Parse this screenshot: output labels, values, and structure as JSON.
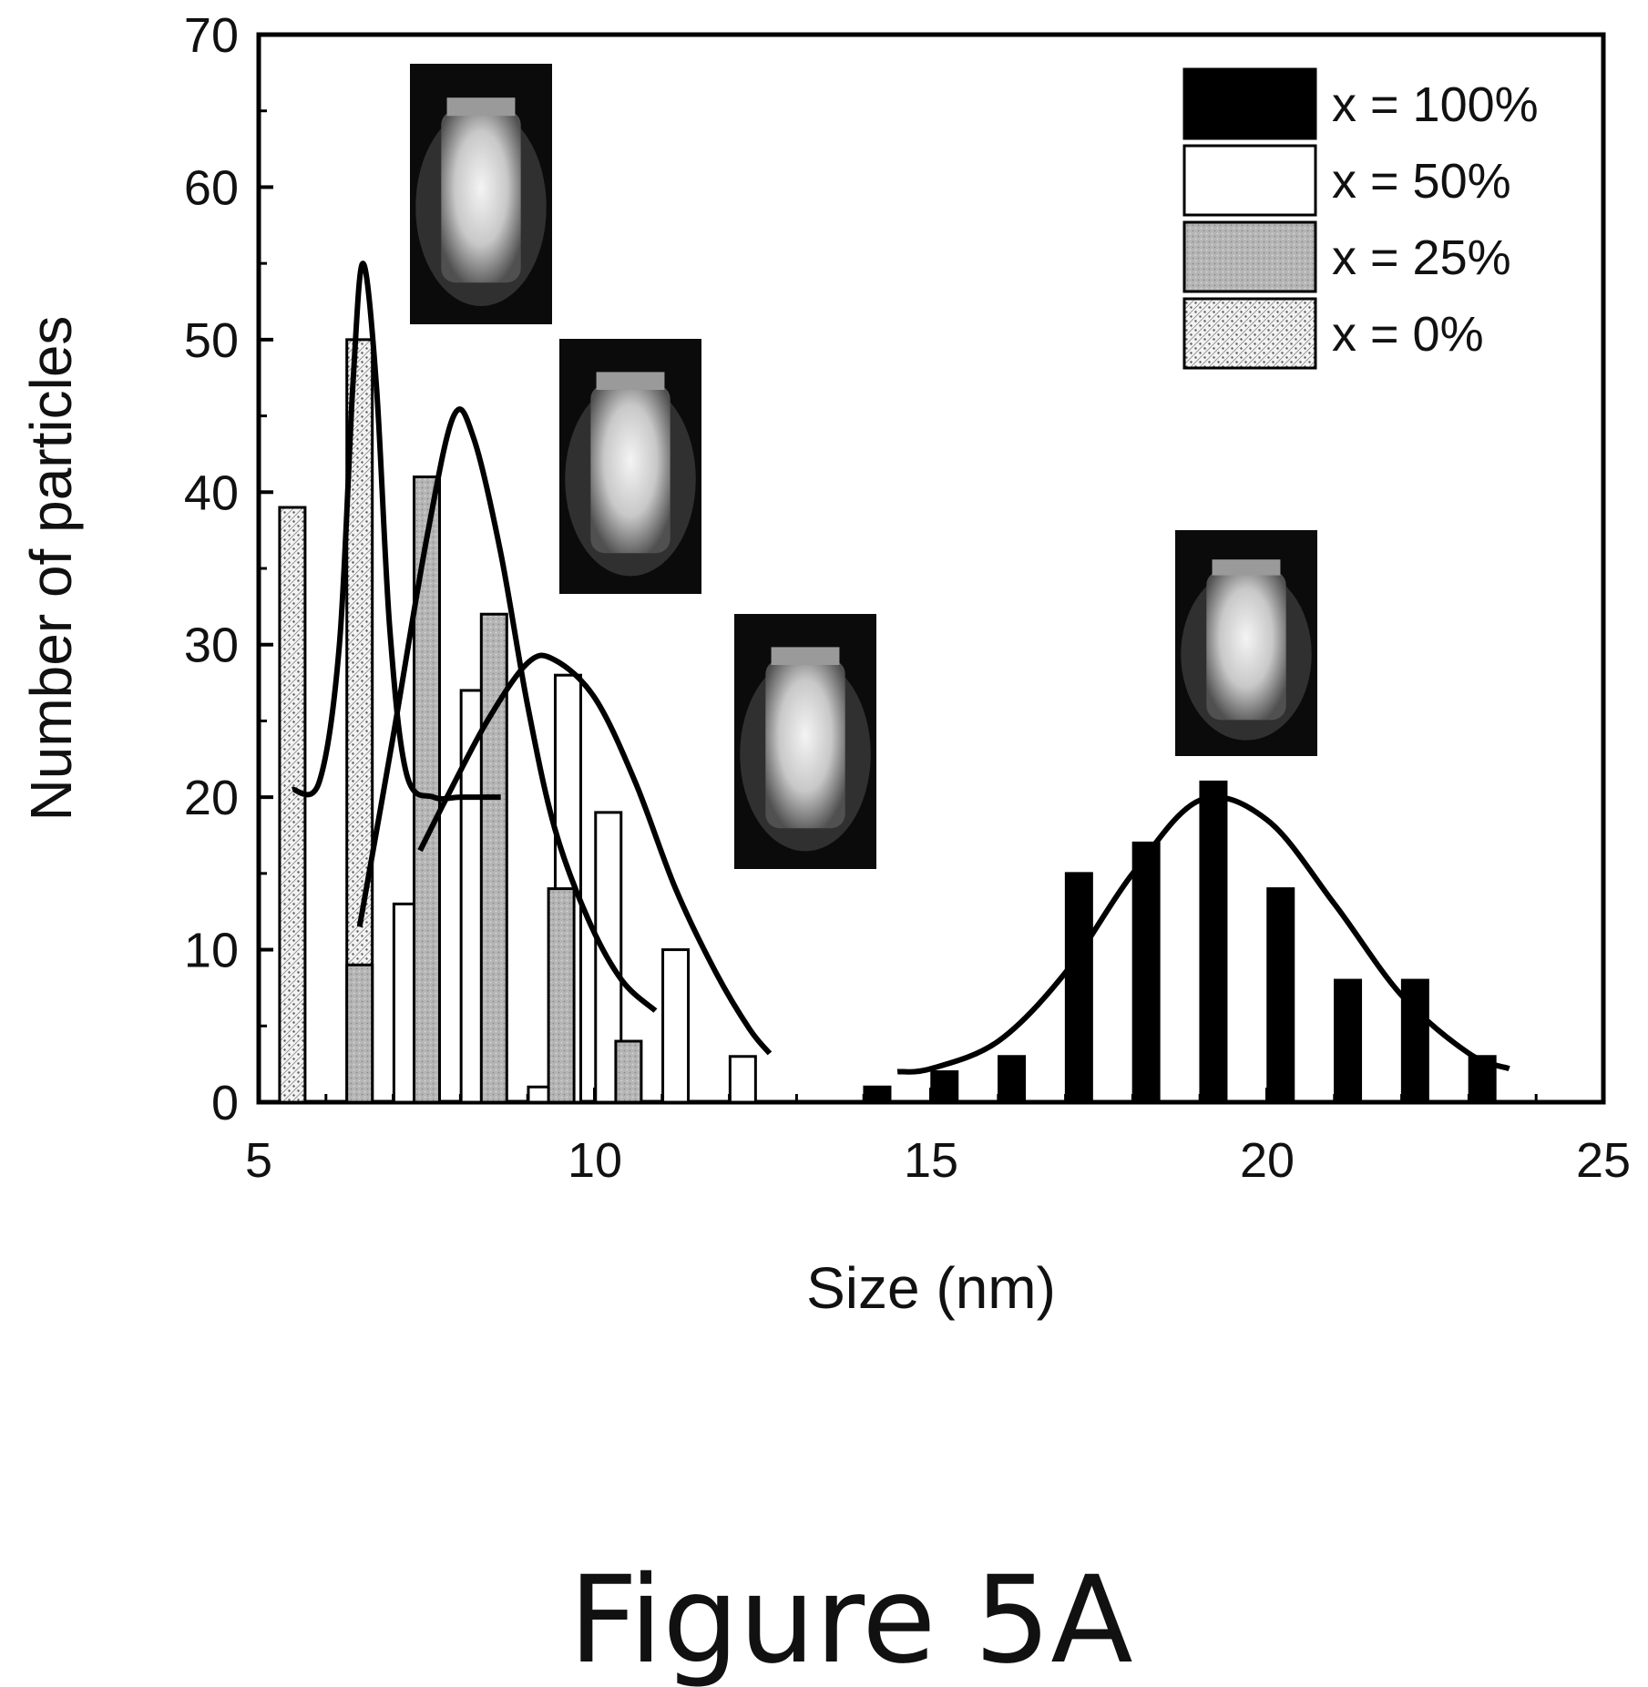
{
  "figure_caption": "Figure 5A",
  "chart_data": {
    "type": "bar",
    "xlabel": "Size (nm)",
    "ylabel": "Number of particles",
    "xlim": [
      5,
      25
    ],
    "ylim": [
      0,
      70
    ],
    "xticks": [
      5,
      10,
      15,
      20,
      25
    ],
    "yticks": [
      0,
      10,
      20,
      30,
      40,
      50,
      60,
      70
    ],
    "grid": false,
    "legend_position": "top-right",
    "series": [
      {
        "name": "x = 100%",
        "fill": "black",
        "color": "#000000",
        "bars": [
          [
            14.2,
            1
          ],
          [
            15.2,
            2
          ],
          [
            16.2,
            3
          ],
          [
            17.2,
            15
          ],
          [
            18.2,
            17
          ],
          [
            19.2,
            21
          ],
          [
            20.2,
            14
          ],
          [
            21.2,
            8
          ],
          [
            22.2,
            8
          ],
          [
            23.2,
            3
          ]
        ],
        "fit": [
          [
            14.5,
            2
          ],
          [
            15.0,
            2.2
          ],
          [
            16.0,
            4.0
          ],
          [
            17.0,
            8.5
          ],
          [
            18.0,
            15.0
          ],
          [
            19.0,
            19.8
          ],
          [
            20.0,
            18.5
          ],
          [
            21.0,
            13.0
          ],
          [
            22.0,
            7.0
          ],
          [
            23.0,
            3.2
          ],
          [
            23.6,
            2.2
          ]
        ]
      },
      {
        "name": "x = 50%",
        "fill": "white",
        "color": "#ffffff",
        "bars": [
          [
            7.2,
            13
          ],
          [
            8.2,
            27
          ],
          [
            9.2,
            1
          ],
          [
            9.6,
            28
          ],
          [
            10.2,
            19
          ],
          [
            11.2,
            10
          ],
          [
            12.2,
            3
          ]
        ],
        "fit": [
          [
            7.4,
            16.5
          ],
          [
            7.8,
            20
          ],
          [
            8.4,
            25
          ],
          [
            9.0,
            28.8
          ],
          [
            9.4,
            29
          ],
          [
            10.0,
            26.5
          ],
          [
            10.6,
            21
          ],
          [
            11.2,
            14
          ],
          [
            11.8,
            8.5
          ],
          [
            12.3,
            4.8
          ],
          [
            12.6,
            3.2
          ]
        ]
      },
      {
        "name": "x = 25%",
        "fill": "gray",
        "color": "#b8b8b8",
        "bars": [
          [
            6.5,
            9
          ],
          [
            7.5,
            41
          ],
          [
            8.5,
            32
          ],
          [
            9.5,
            14
          ],
          [
            10.5,
            4
          ]
        ],
        "fit": [
          [
            6.5,
            11.5
          ],
          [
            7.0,
            24
          ],
          [
            7.5,
            37
          ],
          [
            7.9,
            45
          ],
          [
            8.2,
            43.5
          ],
          [
            8.6,
            36
          ],
          [
            9.0,
            26
          ],
          [
            9.4,
            18
          ],
          [
            9.9,
            12
          ],
          [
            10.4,
            8
          ],
          [
            10.9,
            6
          ]
        ]
      },
      {
        "name": "x = 0%",
        "fill": "dotted",
        "color": "#e6e6e6",
        "bars": [
          [
            5.5,
            39
          ],
          [
            6.5,
            50
          ],
          [
            7.5,
            10
          ]
        ],
        "fit": [
          [
            5.5,
            20.5
          ],
          [
            5.9,
            21
          ],
          [
            6.2,
            30
          ],
          [
            6.4,
            47
          ],
          [
            6.55,
            55
          ],
          [
            6.75,
            47
          ],
          [
            6.95,
            31
          ],
          [
            7.2,
            21.5
          ],
          [
            7.6,
            20
          ],
          [
            8.0,
            20
          ],
          [
            8.6,
            20
          ]
        ]
      }
    ],
    "inset_images": [
      "vial-photo",
      "vial-photo",
      "vial-photo",
      "vial-photo"
    ]
  }
}
